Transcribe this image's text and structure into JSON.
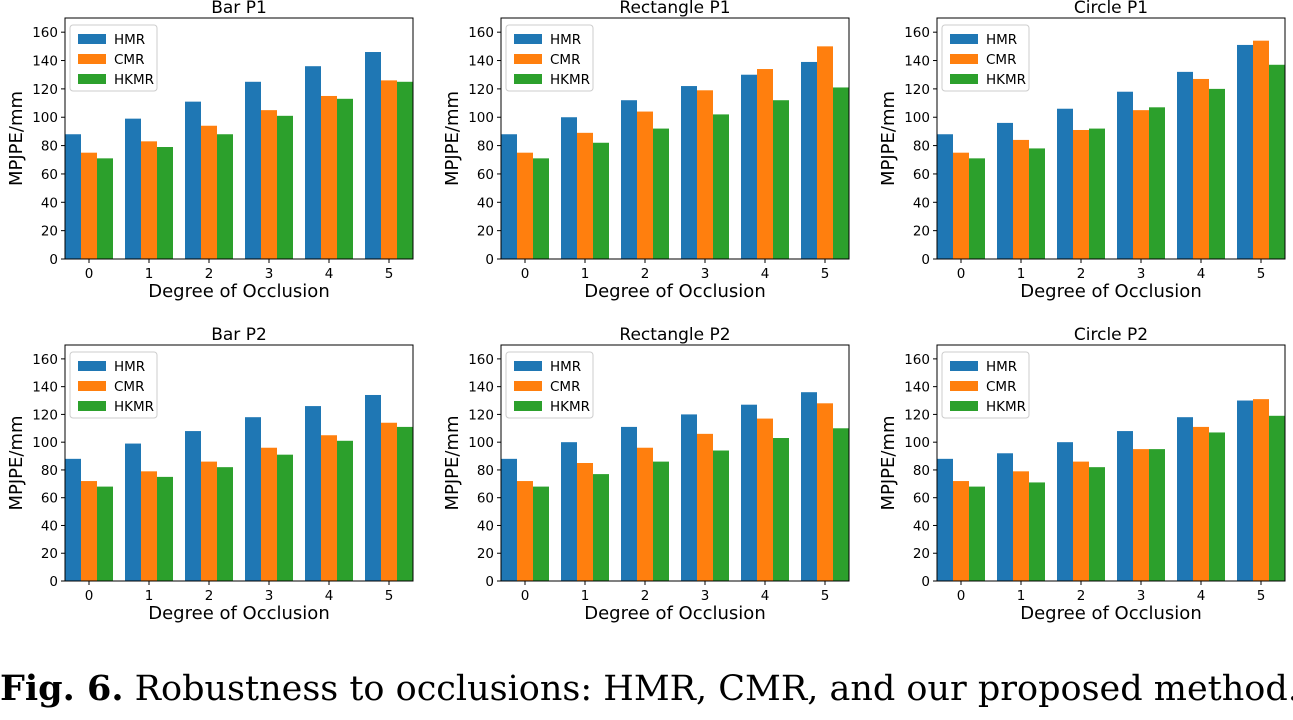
{
  "legend_colors": {
    "HMR": "#1f77b4",
    "CMR": "#ff7f0e",
    "HKMR": "#2ca02c"
  },
  "chart_data": [
    {
      "type": "bar",
      "title": "Bar P1",
      "xlabel": "Degree of Occlusion",
      "ylabel": "MPJPE/mm",
      "categories": [
        "0",
        "1",
        "2",
        "3",
        "4",
        "5"
      ],
      "ylim": [
        0,
        170
      ],
      "yticks": [
        "0",
        "20",
        "40",
        "60",
        "80",
        "100",
        "120",
        "140",
        "160"
      ],
      "legend_position": "upper-left",
      "grid": false,
      "series": [
        {
          "name": "HMR",
          "color": "#1f77b4",
          "values": [
            88,
            99,
            111,
            125,
            136,
            146
          ]
        },
        {
          "name": "CMR",
          "color": "#ff7f0e",
          "values": [
            75,
            83,
            94,
            105,
            115,
            126
          ]
        },
        {
          "name": "HKMR",
          "color": "#2ca02c",
          "values": [
            71,
            79,
            88,
            101,
            113,
            125
          ]
        }
      ]
    },
    {
      "type": "bar",
      "title": "Rectangle P1",
      "xlabel": "Degree of Occlusion",
      "ylabel": "MPJPE/mm",
      "categories": [
        "0",
        "1",
        "2",
        "3",
        "4",
        "5"
      ],
      "ylim": [
        0,
        170
      ],
      "yticks": [
        "0",
        "20",
        "40",
        "60",
        "80",
        "100",
        "120",
        "140",
        "160"
      ],
      "legend_position": "upper-left",
      "grid": false,
      "series": [
        {
          "name": "HMR",
          "color": "#1f77b4",
          "values": [
            88,
            100,
            112,
            122,
            130,
            139
          ]
        },
        {
          "name": "CMR",
          "color": "#ff7f0e",
          "values": [
            75,
            89,
            104,
            119,
            134,
            150
          ]
        },
        {
          "name": "HKMR",
          "color": "#2ca02c",
          "values": [
            71,
            82,
            92,
            102,
            112,
            121
          ]
        }
      ]
    },
    {
      "type": "bar",
      "title": "Circle P1",
      "xlabel": "Degree of Occlusion",
      "ylabel": "MPJPE/mm",
      "categories": [
        "0",
        "1",
        "2",
        "3",
        "4",
        "5"
      ],
      "ylim": [
        0,
        170
      ],
      "yticks": [
        "0",
        "20",
        "40",
        "60",
        "80",
        "100",
        "120",
        "140",
        "160"
      ],
      "legend_position": "upper-left",
      "grid": false,
      "series": [
        {
          "name": "HMR",
          "color": "#1f77b4",
          "values": [
            88,
            96,
            106,
            118,
            132,
            151
          ]
        },
        {
          "name": "CMR",
          "color": "#ff7f0e",
          "values": [
            75,
            84,
            91,
            105,
            127,
            154
          ]
        },
        {
          "name": "HKMR",
          "color": "#2ca02c",
          "values": [
            71,
            78,
            92,
            107,
            120,
            137
          ]
        }
      ]
    },
    {
      "type": "bar",
      "title": "Bar P2",
      "xlabel": "Degree of Occlusion",
      "ylabel": "MPJPE/mm",
      "categories": [
        "0",
        "1",
        "2",
        "3",
        "4",
        "5"
      ],
      "ylim": [
        0,
        170
      ],
      "yticks": [
        "0",
        "20",
        "40",
        "60",
        "80",
        "100",
        "120",
        "140",
        "160"
      ],
      "legend_position": "upper-left",
      "grid": false,
      "series": [
        {
          "name": "HMR",
          "color": "#1f77b4",
          "values": [
            88,
            99,
            108,
            118,
            126,
            134
          ]
        },
        {
          "name": "CMR",
          "color": "#ff7f0e",
          "values": [
            72,
            79,
            86,
            96,
            105,
            114
          ]
        },
        {
          "name": "HKMR",
          "color": "#2ca02c",
          "values": [
            68,
            75,
            82,
            91,
            101,
            111
          ]
        }
      ]
    },
    {
      "type": "bar",
      "title": "Rectangle P2",
      "xlabel": "Degree of Occlusion",
      "ylabel": "MPJPE/mm",
      "categories": [
        "0",
        "1",
        "2",
        "3",
        "4",
        "5"
      ],
      "ylim": [
        0,
        170
      ],
      "yticks": [
        "0",
        "20",
        "40",
        "60",
        "80",
        "100",
        "120",
        "140",
        "160"
      ],
      "legend_position": "upper-left",
      "grid": false,
      "series": [
        {
          "name": "HMR",
          "color": "#1f77b4",
          "values": [
            88,
            100,
            111,
            120,
            127,
            136
          ]
        },
        {
          "name": "CMR",
          "color": "#ff7f0e",
          "values": [
            72,
            85,
            96,
            106,
            117,
            128
          ]
        },
        {
          "name": "HKMR",
          "color": "#2ca02c",
          "values": [
            68,
            77,
            86,
            94,
            103,
            110
          ]
        }
      ]
    },
    {
      "type": "bar",
      "title": "Circle P2",
      "xlabel": "Degree of Occlusion",
      "ylabel": "MPJPE/mm",
      "categories": [
        "0",
        "1",
        "2",
        "3",
        "4",
        "5"
      ],
      "ylim": [
        0,
        170
      ],
      "yticks": [
        "0",
        "20",
        "40",
        "60",
        "80",
        "100",
        "120",
        "140",
        "160"
      ],
      "legend_position": "upper-left",
      "grid": false,
      "series": [
        {
          "name": "HMR",
          "color": "#1f77b4",
          "values": [
            88,
            92,
            100,
            108,
            118,
            130
          ]
        },
        {
          "name": "CMR",
          "color": "#ff7f0e",
          "values": [
            72,
            79,
            86,
            95,
            111,
            131
          ]
        },
        {
          "name": "HKMR",
          "color": "#2ca02c",
          "values": [
            68,
            71,
            82,
            95,
            107,
            119
          ]
        }
      ]
    }
  ],
  "caption": {
    "label": "Fig. 6.",
    "text": "Robustness to occlusions: HMR, CMR, and our proposed method."
  }
}
